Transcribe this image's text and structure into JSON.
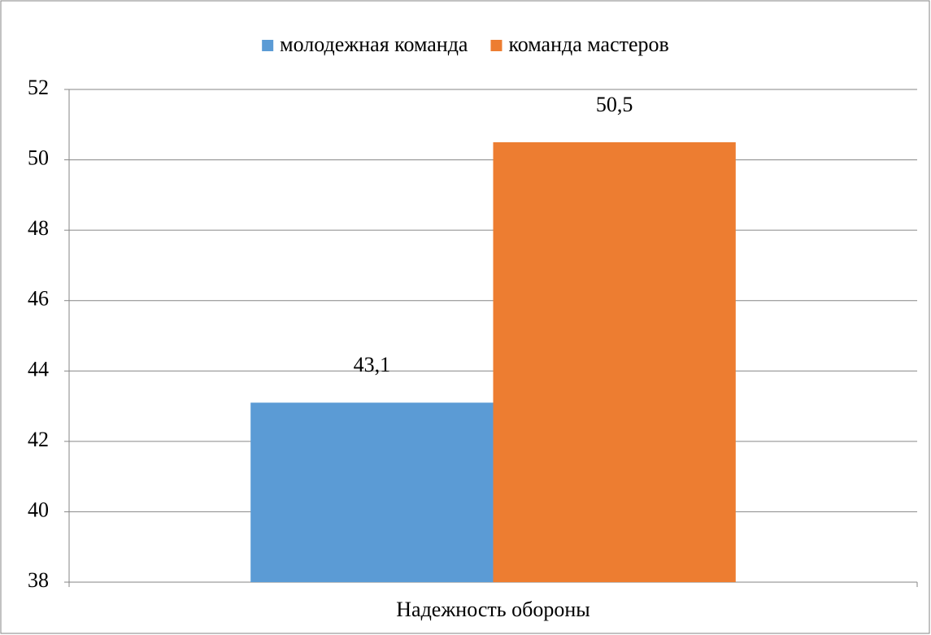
{
  "chart_data": {
    "type": "bar",
    "categories": [
      "Надежность обороны"
    ],
    "series": [
      {
        "name": "молодежная команда",
        "color": "#5b9bd5",
        "values": [
          43.1
        ],
        "value_labels": [
          "43,1"
        ]
      },
      {
        "name": "команда мастеров",
        "color": "#ed7d31",
        "values": [
          50.5
        ],
        "value_labels": [
          "50,5"
        ]
      }
    ],
    "ylim": [
      38,
      52
    ],
    "yticks": [
      38,
      40,
      42,
      44,
      46,
      48,
      50,
      52
    ],
    "grid": true,
    "legend": "top"
  }
}
